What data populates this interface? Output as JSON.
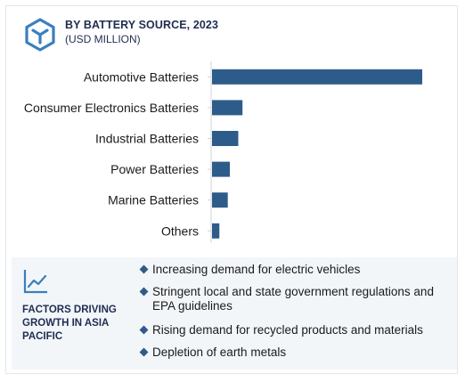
{
  "header": {
    "title": "BY BATTERY SOURCE, 2023",
    "subtitle": "(USD MILLION)",
    "logo_icon": "hexagon-box-icon"
  },
  "colors": {
    "bar": "#2e5c8a",
    "accent": "#3a7fbf",
    "panel": "#f3f6f9"
  },
  "chart_data": {
    "type": "bar",
    "orientation": "horizontal",
    "categories": [
      "Automotive Batteries",
      "Consumer Electronics Batteries",
      "Industrial Batteries",
      "Power Batteries",
      "Marine Batteries",
      "Others"
    ],
    "values": [
      100,
      14.5,
      12.5,
      8.5,
      7.5,
      3.5
    ],
    "xlabel": "",
    "ylabel": "",
    "xlim": [
      0,
      100
    ],
    "grid": false,
    "legend": "none"
  },
  "factors": {
    "icon": "trend-line-icon",
    "title": "FACTORS DRIVING GROWTH IN ASIA PACIFIC",
    "items": [
      "Increasing demand for electric vehicles",
      "Stringent local and state government regulations and EPA guidelines",
      "Rising demand for recycled products and materials",
      "Depletion of earth metals"
    ]
  }
}
